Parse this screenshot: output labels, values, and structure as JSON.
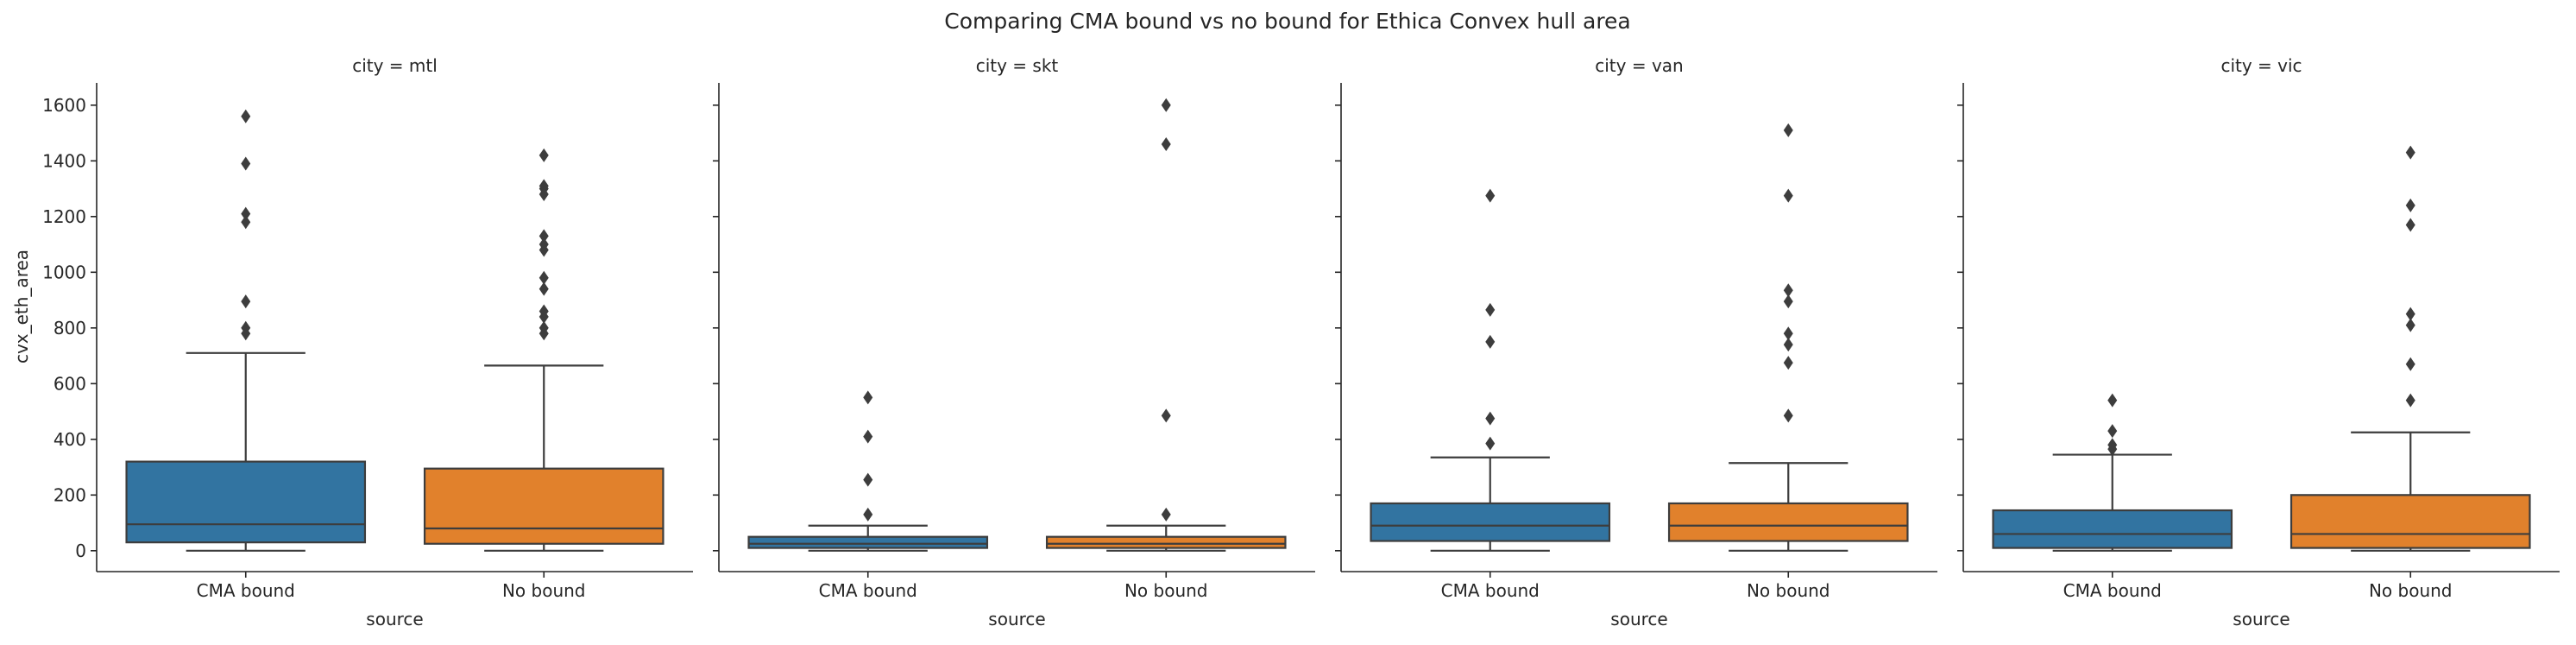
{
  "chart_data": {
    "type": "box",
    "title": "Comparing CMA bound vs no bound for Ethica Convex hull area",
    "xlabel": "source",
    "ylabel": "cvx_eth_area",
    "categories": [
      "CMA bound",
      "No bound"
    ],
    "ylim": [
      -75,
      1680
    ],
    "yticks": [
      0,
      200,
      400,
      600,
      800,
      1000,
      1200,
      1400,
      1600
    ],
    "colors": {
      "CMA bound": "#3274a1",
      "No bound": "#e1812c"
    },
    "grid": false,
    "shared_y": true,
    "facets": [
      {
        "title": "city = mtl",
        "boxes": [
          {
            "source": "CMA bound",
            "whisker_low": 0,
            "q1": 30,
            "median": 95,
            "q3": 320,
            "whisker_high": 710,
            "outliers": [
              780,
              800,
              895,
              1180,
              1210,
              1390,
              1560
            ]
          },
          {
            "source": "No bound",
            "whisker_low": 0,
            "q1": 25,
            "median": 80,
            "q3": 295,
            "whisker_high": 665,
            "outliers": [
              780,
              800,
              840,
              860,
              940,
              980,
              1080,
              1100,
              1130,
              1280,
              1300,
              1310,
              1420
            ]
          }
        ]
      },
      {
        "title": "city = skt",
        "boxes": [
          {
            "source": "CMA bound",
            "whisker_low": 0,
            "q1": 10,
            "median": 25,
            "q3": 50,
            "whisker_high": 90,
            "outliers": [
              130,
              255,
              410,
              550
            ]
          },
          {
            "source": "No bound",
            "whisker_low": 0,
            "q1": 10,
            "median": 25,
            "q3": 50,
            "whisker_high": 90,
            "outliers": [
              130,
              485,
              1460,
              1600
            ]
          }
        ]
      },
      {
        "title": "city = van",
        "boxes": [
          {
            "source": "CMA bound",
            "whisker_low": 0,
            "q1": 35,
            "median": 90,
            "q3": 170,
            "whisker_high": 335,
            "outliers": [
              385,
              475,
              750,
              865,
              1275
            ]
          },
          {
            "source": "No bound",
            "whisker_low": 0,
            "q1": 35,
            "median": 90,
            "q3": 170,
            "whisker_high": 315,
            "outliers": [
              485,
              675,
              740,
              780,
              895,
              935,
              1275,
              1510
            ]
          }
        ]
      },
      {
        "title": "city = vic",
        "boxes": [
          {
            "source": "CMA bound",
            "whisker_low": 0,
            "q1": 10,
            "median": 60,
            "q3": 145,
            "whisker_high": 345,
            "outliers": [
              365,
              380,
              430,
              540
            ]
          },
          {
            "source": "No bound",
            "whisker_low": 0,
            "q1": 10,
            "median": 60,
            "q3": 200,
            "whisker_high": 425,
            "outliers": [
              540,
              670,
              810,
              850,
              1170,
              1240,
              1430
            ]
          }
        ]
      }
    ]
  }
}
